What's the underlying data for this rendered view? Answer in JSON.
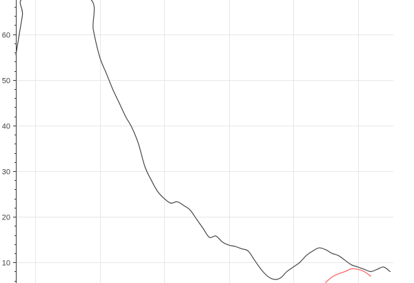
{
  "chart_data": {
    "type": "line",
    "title": "",
    "xlabel": "",
    "ylabel": "",
    "ylim": [
      5.5,
      67.5
    ],
    "xlim": [
      0.2,
      6.05
    ],
    "grid": true,
    "x_tick_values": [
      0.5,
      1.5,
      2.5,
      3.5,
      4.5,
      5.5
    ],
    "y_ticks": [
      10,
      20,
      30,
      40,
      50,
      60
    ],
    "series": [
      {
        "color": "#444444",
        "x": [
          0.2,
          0.3,
          0.35,
          1.32,
          1.4,
          1.5,
          1.6,
          1.7,
          1.8,
          1.9,
          2.0,
          2.1,
          2.2,
          2.3,
          2.4,
          2.5,
          2.6,
          2.7,
          2.8,
          2.9,
          3.0,
          3.1,
          3.2,
          3.3,
          3.4,
          3.5,
          3.6,
          3.7,
          3.8,
          3.9,
          4.0,
          4.1,
          4.2,
          4.3,
          4.4,
          4.5,
          4.6,
          4.7,
          4.8,
          4.9,
          5.0,
          5.1,
          5.2,
          5.3,
          5.4,
          5.5,
          5.6,
          5.7,
          5.8,
          5.9,
          6.0
        ],
        "y": [
          55.5,
          64.0,
          68.0,
          68.0,
          61.0,
          55.0,
          51.5,
          48.0,
          45.0,
          42.0,
          39.5,
          36.0,
          31.0,
          28.0,
          25.5,
          24.0,
          23.0,
          23.3,
          22.5,
          21.5,
          19.5,
          17.5,
          15.5,
          15.8,
          14.5,
          13.8,
          13.5,
          13.0,
          12.5,
          10.5,
          8.5,
          7.0,
          6.3,
          6.6,
          8.0,
          9.0,
          10.0,
          11.5,
          12.5,
          13.2,
          12.8,
          12.0,
          11.5,
          10.5,
          9.5,
          9.0,
          8.5,
          8.0,
          8.5,
          9.0,
          8.0
        ]
      },
      {
        "color": "#ff5a5a",
        "x": [
          5.0,
          5.1,
          5.2,
          5.3,
          5.4,
          5.5,
          5.6,
          5.7
        ],
        "y": [
          5.6,
          6.8,
          7.5,
          8.0,
          8.6,
          8.5,
          8.0,
          7.0
        ]
      }
    ]
  }
}
